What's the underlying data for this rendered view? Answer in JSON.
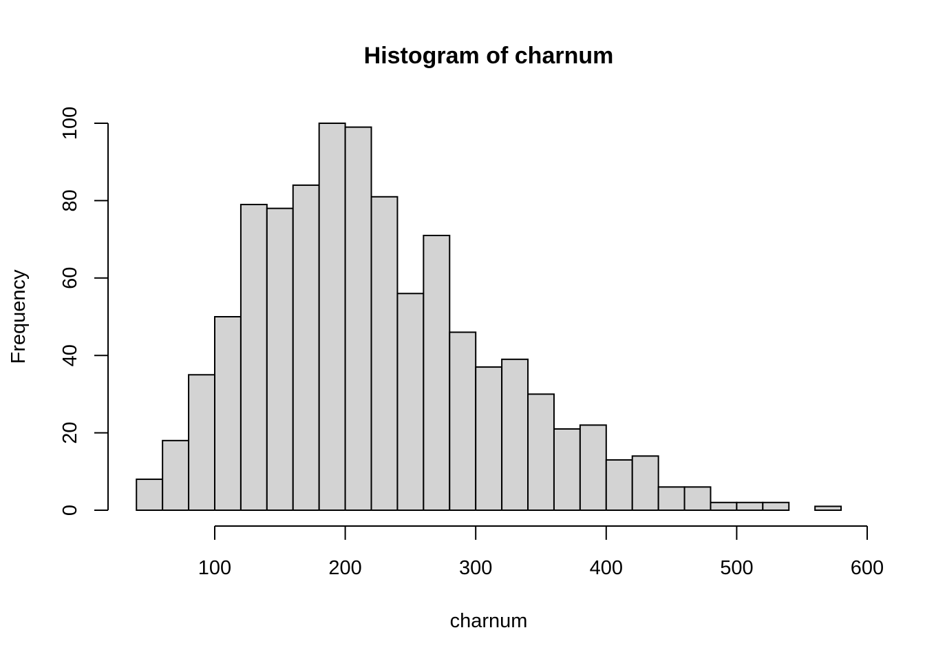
{
  "chart_data": {
    "type": "bar",
    "title": "Histogram of charnum",
    "xlabel": "charnum",
    "ylabel": "Frequency",
    "bin_edges": [
      40,
      60,
      80,
      100,
      120,
      140,
      160,
      180,
      200,
      220,
      240,
      260,
      280,
      300,
      320,
      340,
      360,
      380,
      400,
      420,
      440,
      460,
      480,
      500,
      520,
      540,
      560,
      580
    ],
    "values": [
      8,
      18,
      35,
      50,
      79,
      78,
      84,
      100,
      99,
      81,
      56,
      71,
      46,
      37,
      39,
      30,
      21,
      22,
      13,
      14,
      6,
      6,
      2,
      2,
      2,
      0,
      1
    ],
    "x_ticks": [
      "100",
      "200",
      "300",
      "400",
      "500",
      "600"
    ],
    "y_ticks": [
      "0",
      "20",
      "40",
      "60",
      "80",
      "100"
    ],
    "xlim": [
      100,
      600
    ],
    "ylim": [
      0,
      100
    ],
    "grid": false,
    "bar_color": "#d3d3d3",
    "bar_border_color": "#000000"
  }
}
